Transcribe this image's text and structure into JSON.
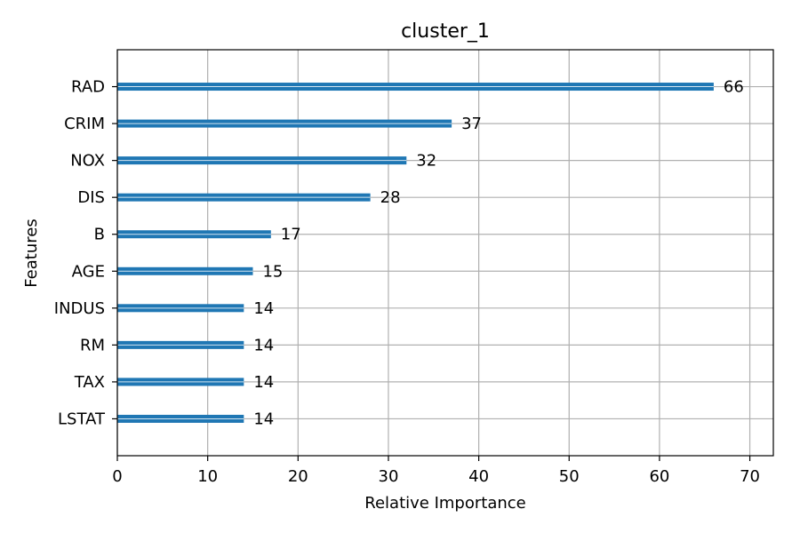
{
  "chart_data": {
    "type": "bar",
    "orientation": "horizontal",
    "title": "cluster_1",
    "xlabel": "Relative Importance",
    "ylabel": "Features",
    "categories": [
      "RAD",
      "CRIM",
      "NOX",
      "DIS",
      "B",
      "AGE",
      "INDUS",
      "RM",
      "TAX",
      "LSTAT"
    ],
    "values": [
      66,
      37,
      32,
      28,
      17,
      15,
      14,
      14,
      14,
      14
    ],
    "xlim": [
      0,
      72.6
    ],
    "xticks": [
      0,
      10,
      20,
      30,
      40,
      50,
      60,
      70
    ],
    "grid": true,
    "bar_color": "#1f77b4"
  }
}
